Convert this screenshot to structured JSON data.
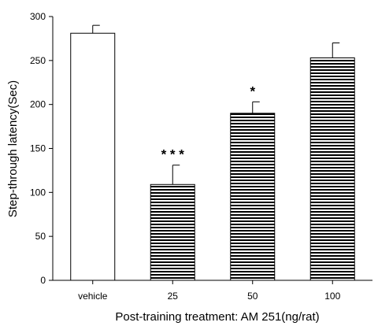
{
  "chart_data": {
    "type": "bar",
    "categories": [
      "vehicle",
      "25",
      "50",
      "100"
    ],
    "values": [
      281,
      109,
      190,
      253
    ],
    "errors": [
      9,
      22,
      13,
      17
    ],
    "significance": [
      "",
      "* * *",
      "*",
      ""
    ],
    "fills": [
      "open",
      "striped",
      "striped",
      "striped"
    ],
    "xlabel": "Post-training treatment: AM 251(ng/rat)",
    "ylabel": "Step-through latency(Sec)",
    "ylim": [
      0,
      300
    ],
    "yticks": [
      "0",
      "50",
      "100",
      "150",
      "200",
      "250",
      "300"
    ],
    "grid": false,
    "legend": "none"
  }
}
